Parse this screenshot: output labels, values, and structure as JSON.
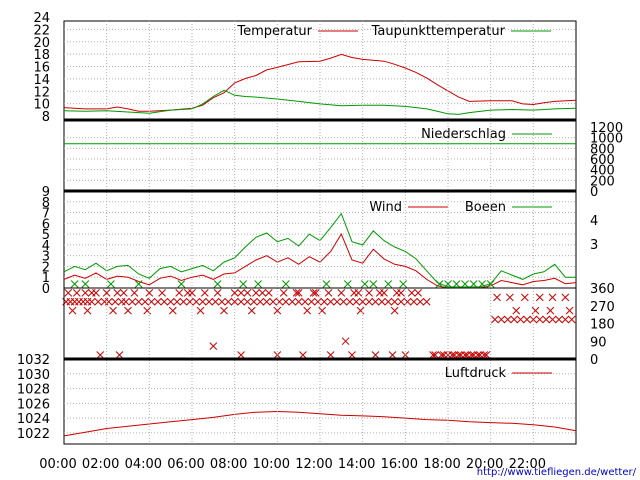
{
  "credit": "http://www.tiefliegen.de/wetter/",
  "chart_data": [
    {
      "type": "line",
      "panel": "temperature",
      "x_unit": "hour",
      "yticks": [
        "24",
        "22",
        "20",
        "18",
        "16",
        "14",
        "12",
        "10",
        "8"
      ],
      "ylim": [
        8,
        24
      ],
      "series": [
        {
          "name": "Temperatur",
          "color": "#cc0000",
          "x": [
            0,
            1,
            2,
            2.5,
            3,
            3.5,
            4,
            5,
            6,
            6.5,
            7,
            7.5,
            8,
            8.5,
            9,
            9.5,
            10,
            11,
            12,
            12.5,
            13,
            13.5,
            14,
            15,
            15.5,
            16,
            16.5,
            17,
            17.5,
            18,
            18.5,
            19,
            20,
            21,
            21.5,
            22,
            22.5,
            23,
            24
          ],
          "values": [
            10.0,
            9.8,
            9.8,
            10.1,
            9.8,
            9.4,
            9.4,
            9.6,
            9.9,
            10.4,
            11.6,
            12.4,
            14.0,
            14.7,
            15.2,
            16.1,
            16.5,
            17.4,
            17.5,
            18.0,
            18.6,
            18.1,
            17.8,
            17.5,
            17.0,
            16.4,
            15.7,
            14.8,
            13.7,
            12.7,
            11.7,
            11.0,
            11.1,
            11.1,
            10.6,
            10.5,
            10.8,
            11.0,
            11.2
          ]
        },
        {
          "name": "Taupunkttemperatur",
          "color": "#009900",
          "x": [
            0,
            1,
            2,
            3,
            4,
            5,
            6,
            6.5,
            7,
            7.5,
            8,
            8.5,
            9,
            10,
            11,
            12,
            13,
            14,
            15,
            16,
            17,
            17.5,
            18,
            18.5,
            19,
            20,
            21,
            22,
            23,
            24
          ],
          "values": [
            9.5,
            9.4,
            9.5,
            9.3,
            9.1,
            9.6,
            9.8,
            10.6,
            11.8,
            12.8,
            12.0,
            11.8,
            11.7,
            11.4,
            11.0,
            10.6,
            10.3,
            10.4,
            10.4,
            10.2,
            9.8,
            9.4,
            9.0,
            8.9,
            9.2,
            9.6,
            9.7,
            9.6,
            9.8,
            9.9
          ]
        }
      ]
    },
    {
      "type": "line",
      "panel": "precipitation",
      "x_unit": "hour",
      "yticks_right": [
        "1200",
        "1000",
        "800",
        "600",
        "400",
        "200",
        "0"
      ],
      "ylim": [
        0,
        1200
      ],
      "series": [
        {
          "name": "Niederschlag",
          "color": "#009900",
          "x": [
            0,
            24
          ],
          "values": [
            800,
            800
          ]
        }
      ]
    },
    {
      "type": "line",
      "panel": "wind",
      "x_unit": "hour",
      "yticks": [
        "9",
        "8",
        "7",
        "6",
        "5",
        "4",
        "3",
        "2",
        "1",
        "0"
      ],
      "yticks_right": [
        "4",
        "3"
      ],
      "ylim": [
        0,
        9
      ],
      "series": [
        {
          "name": "Wind",
          "color": "#cc0000",
          "x": [
            0,
            0.5,
            1,
            1.5,
            2,
            2.5,
            3,
            3.5,
            4,
            4.5,
            5,
            5.5,
            6,
            6.5,
            7,
            7.5,
            8,
            8.5,
            9,
            9.5,
            10,
            10.5,
            11,
            11.5,
            12,
            12.5,
            13,
            13.5,
            14,
            14.5,
            15,
            15.5,
            16,
            16.5,
            17,
            17.5,
            18,
            18.5,
            19,
            19.5,
            20,
            20.5,
            21,
            21.5,
            22,
            22.5,
            23,
            23.5,
            24
          ],
          "values": [
            0.8,
            1.2,
            0.9,
            1.4,
            0.8,
            1.1,
            1.0,
            0.6,
            0.3,
            0.9,
            1.1,
            0.7,
            1.0,
            1.2,
            0.8,
            1.3,
            1.4,
            2.0,
            2.6,
            3.0,
            2.4,
            2.8,
            2.2,
            2.9,
            2.4,
            3.4,
            5.0,
            2.6,
            2.3,
            3.6,
            2.7,
            2.2,
            2.0,
            1.6,
            0.8,
            0.2,
            0.0,
            0.0,
            0.0,
            0.0,
            0.2,
            0.7,
            0.5,
            0.3,
            0.6,
            0.7,
            0.9,
            0.4,
            0.5
          ]
        },
        {
          "name": "Boeen",
          "color": "#009900",
          "x": [
            0,
            0.5,
            1,
            1.5,
            2,
            2.5,
            3,
            3.5,
            4,
            4.5,
            5,
            5.5,
            6,
            6.5,
            7,
            7.5,
            8,
            8.5,
            9,
            9.5,
            10,
            10.5,
            11,
            11.5,
            12,
            12.5,
            13,
            13.5,
            14,
            14.5,
            15,
            15.5,
            16,
            16.5,
            17,
            17.5,
            18,
            18.5,
            19,
            19.5,
            20,
            20.5,
            21,
            21.5,
            22,
            22.5,
            23,
            23.5,
            24
          ],
          "values": [
            1.5,
            2.0,
            1.7,
            2.3,
            1.6,
            2.0,
            2.1,
            1.3,
            0.9,
            1.8,
            2.0,
            1.5,
            1.8,
            2.1,
            1.6,
            2.4,
            2.8,
            3.8,
            4.7,
            5.1,
            4.3,
            4.6,
            3.9,
            5.0,
            4.4,
            5.6,
            6.9,
            4.3,
            4.0,
            5.3,
            4.4,
            3.8,
            3.4,
            2.7,
            1.6,
            0.5,
            0.1,
            0.1,
            0.1,
            0.1,
            0.4,
            1.6,
            1.2,
            0.8,
            1.3,
            1.5,
            2.2,
            1.0,
            1.0
          ]
        }
      ]
    },
    {
      "type": "scatter",
      "panel": "wind-direction",
      "x_unit": "hour",
      "yticks_right": [
        "360",
        "270",
        "180",
        "90",
        "0"
      ],
      "ylim": [
        0,
        360
      ],
      "series": [
        {
          "name": "Boeen",
          "color": "#009900",
          "x": [
            0.5,
            1,
            2.2,
            3.5,
            5.5,
            7.2,
            8.4,
            9.1,
            10.4,
            12.3,
            13.3,
            14.1,
            14.5,
            15.2,
            15.9,
            17.6,
            18,
            18.4,
            18.8,
            19.2,
            19.6,
            20
          ],
          "values": [
            360,
            360,
            360,
            360,
            360,
            360,
            360,
            360,
            360,
            360,
            360,
            360,
            360,
            360,
            360,
            360,
            360,
            360,
            360,
            360,
            360,
            360
          ]
        },
        {
          "name": "Wind",
          "color": "#cc0000",
          "x": [
            0.1,
            0.3,
            0.5,
            0.7,
            0.9,
            1.1,
            1.3,
            1.6,
            1.9,
            2.1,
            2.4,
            2.7,
            2.9,
            3.2,
            3.5,
            3.8,
            4.1,
            4.4,
            4.7,
            5.0,
            5.3,
            5.6,
            5.9,
            6.2,
            6.5,
            6.8,
            7.1,
            7.4,
            7.7,
            8.0,
            8.3,
            8.6,
            8.9,
            9.2,
            9.5,
            9.8,
            10.1,
            10.4,
            10.7,
            11.0,
            11.3,
            11.6,
            11.9,
            12.2,
            12.5,
            12.8,
            13.1,
            13.4,
            13.7,
            14.0,
            14.3,
            14.6,
            14.9,
            15.2,
            15.5,
            15.8,
            16.1,
            16.4,
            16.7,
            17.0,
            20.2,
            20.5,
            20.8,
            21.1,
            21.4,
            21.7,
            22.0,
            22.3,
            22.6,
            22.9,
            23.2,
            23.5,
            23.8,
            0.2,
            0.6,
            1.0,
            1.5,
            2.0,
            2.8,
            3.3,
            4.0,
            4.6,
            5.4,
            6.0,
            6.6,
            7.2,
            8.0,
            8.6,
            9.0,
            9.6,
            10.3,
            11.0,
            11.7,
            12.4,
            13.0,
            13.6,
            14.3,
            15.0,
            15.8,
            16.3,
            20.3,
            20.9,
            21.6,
            22.3,
            22.9,
            23.5,
            0.4,
            1.1,
            2.3,
            3.0,
            3.9,
            5.1,
            6.4,
            7.5,
            8.8,
            10.0,
            11.4,
            12.1,
            13.9,
            15.5,
            21.2,
            22.1,
            22.8,
            23.7,
            7.0,
            13.2,
            1.3,
            2.5,
            5.8,
            8.3,
            9.3,
            10.9,
            11.8,
            13.8,
            14.8,
            15.6,
            16.6,
            1.7,
            2.6,
            8.3,
            10.0,
            11.2,
            12.5,
            13.5,
            14.6,
            15.4,
            16.0,
            17.3,
            17.7,
            18.0,
            18.3,
            18.6,
            18.9,
            19.2,
            19.5,
            19.8,
            17.4,
            17.8,
            18.2,
            18.5,
            18.8,
            19.1,
            19.4,
            19.7
          ],
          "values": [
            270,
            270,
            270,
            270,
            270,
            270,
            270,
            270,
            270,
            270,
            270,
            270,
            270,
            270,
            270,
            270,
            270,
            270,
            270,
            270,
            270,
            270,
            270,
            270,
            270,
            270,
            270,
            270,
            270,
            270,
            270,
            270,
            270,
            270,
            270,
            270,
            270,
            270,
            270,
            270,
            270,
            270,
            270,
            270,
            270,
            270,
            270,
            270,
            270,
            270,
            270,
            270,
            270,
            270,
            270,
            270,
            270,
            270,
            270,
            270,
            180,
            180,
            180,
            180,
            180,
            180,
            180,
            180,
            180,
            180,
            180,
            180,
            180,
            315,
            315,
            315,
            315,
            315,
            315,
            315,
            315,
            315,
            315,
            315,
            315,
            315,
            315,
            315,
            315,
            315,
            315,
            315,
            315,
            315,
            315,
            315,
            315,
            315,
            315,
            315,
            292,
            292,
            292,
            292,
            292,
            292,
            225,
            225,
            225,
            225,
            225,
            225,
            225,
            225,
            225,
            225,
            225,
            225,
            225,
            225,
            225,
            225,
            225,
            225,
            45,
            70,
            315,
            315,
            315,
            315,
            315,
            315,
            315,
            315,
            315,
            315,
            315,
            0,
            0,
            0,
            0,
            0,
            0,
            0,
            0,
            0,
            0,
            0,
            0,
            0,
            0,
            0,
            0,
            0,
            0,
            0,
            0,
            0,
            0,
            0,
            0,
            0,
            0,
            0
          ]
        }
      ]
    },
    {
      "type": "line",
      "panel": "pressure",
      "x_unit": "hour",
      "xticks": [
        "00:00",
        "02:00",
        "04:00",
        "06:00",
        "08:00",
        "10:00",
        "12:00",
        "14:00",
        "16:00",
        "18:00",
        "20:00",
        "22:00"
      ],
      "yticks": [
        "1032",
        "1030",
        "1028",
        "1026",
        "1024",
        "1022"
      ],
      "ylim": [
        1020.5,
        1032
      ],
      "series": [
        {
          "name": "Luftdruck",
          "color": "#cc0000",
          "x": [
            0,
            1,
            2,
            3,
            4,
            5,
            6,
            7,
            8,
            9,
            10,
            11,
            12,
            13,
            14,
            15,
            16,
            17,
            18,
            19,
            20,
            21,
            22,
            23,
            24
          ],
          "values": [
            1021.6,
            1022.1,
            1022.6,
            1022.9,
            1023.2,
            1023.5,
            1023.8,
            1024.1,
            1024.5,
            1024.8,
            1024.9,
            1024.8,
            1024.6,
            1024.4,
            1024.3,
            1024.2,
            1024.0,
            1023.8,
            1023.7,
            1023.5,
            1023.4,
            1023.3,
            1023.1,
            1022.8,
            1022.3
          ]
        }
      ]
    }
  ]
}
